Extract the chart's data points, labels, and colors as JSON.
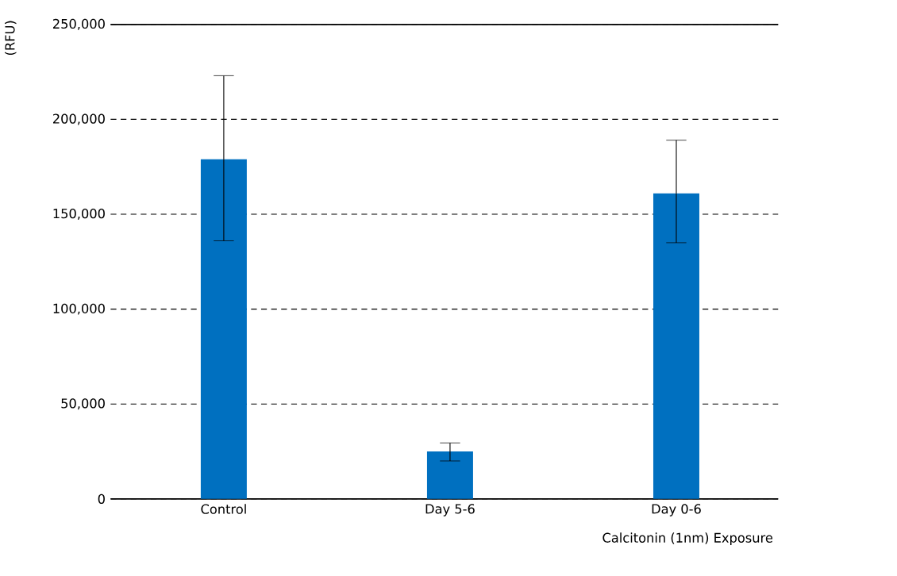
{
  "chart_data": {
    "type": "bar",
    "xlabel": "Calcitonin (1nm) Exposure",
    "ylabel": "(RFU)",
    "categories": [
      "Control",
      "Day 5-6",
      "Day 0-6"
    ],
    "values": [
      179000,
      25000,
      161000
    ],
    "errors": [
      [
        136000,
        223000
      ],
      [
        20000,
        29500
      ],
      [
        135000,
        189000
      ]
    ],
    "color": "#0070c0",
    "ylim": [
      0,
      250000
    ],
    "yticks": [
      {
        "value": 0,
        "label": "0"
      },
      {
        "value": 50000,
        "label": "50,000"
      },
      {
        "value": 100000,
        "label": "100,000"
      },
      {
        "value": 150000,
        "label": "150,000"
      },
      {
        "value": 200000,
        "label": "200,000"
      },
      {
        "value": 250000,
        "label": "250,000"
      }
    ],
    "grid": "y"
  }
}
